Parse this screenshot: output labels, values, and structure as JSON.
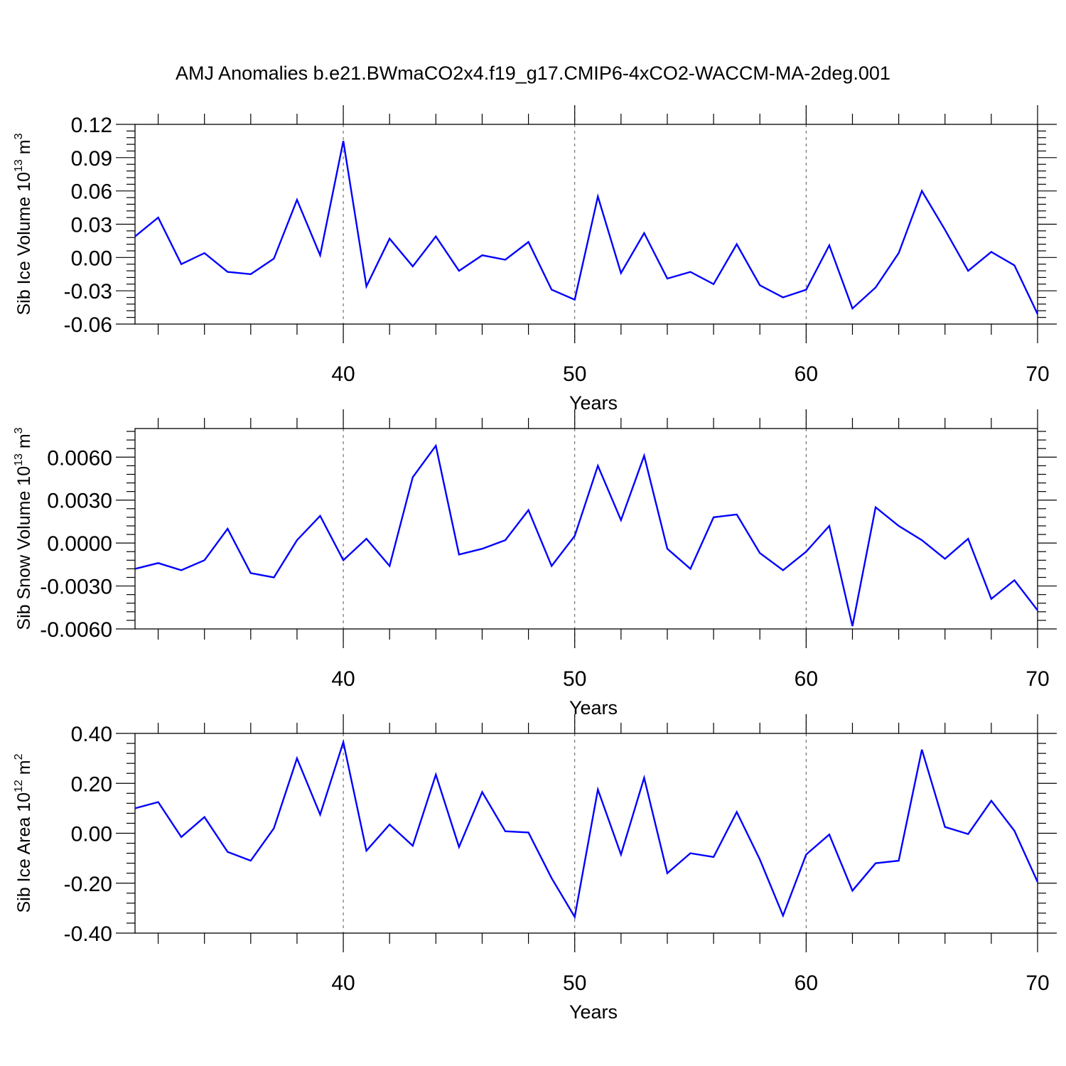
{
  "title": "AMJ Anomalies b.e21.BWmaCO2x4.f19_g17.CMIP6-4xCO2-WACCM-MA-2deg.001",
  "colors": {
    "line": "#0000ff",
    "axes": "#000000",
    "grid": "#555555",
    "background": "#ffffff"
  },
  "chart_data": [
    {
      "type": "line",
      "xlabel": "Years",
      "ylabel_parts": [
        "Sib Ice Volume 10",
        "13",
        " m",
        "3"
      ],
      "xlim": [
        31,
        70
      ],
      "ylim": [
        -0.06,
        0.12
      ],
      "xticks": [
        40,
        50,
        60,
        70
      ],
      "xtick_labels": [
        "40",
        "50",
        "60",
        "70"
      ],
      "yticks": [
        -0.06,
        -0.03,
        0,
        0.03,
        0.06,
        0.09,
        0.12
      ],
      "ytick_labels": [
        "-0.06",
        "-0.03",
        "0.00",
        "0.03",
        "0.06",
        "0.09",
        "0.12"
      ],
      "grid": "vertical dashed at x = 40, 50, 60",
      "x": [
        31,
        32,
        33,
        34,
        35,
        36,
        37,
        38,
        39,
        40,
        41,
        42,
        43,
        44,
        45,
        46,
        47,
        48,
        49,
        50,
        51,
        52,
        53,
        54,
        55,
        56,
        57,
        58,
        59,
        60,
        61,
        62,
        63,
        64,
        65,
        66,
        67,
        68,
        69,
        70
      ],
      "values": [
        0.019,
        0.036,
        -0.006,
        0.004,
        -0.013,
        -0.015,
        -0.001,
        0.052,
        0.002,
        0.105,
        -0.026,
        0.017,
        -0.008,
        0.019,
        -0.012,
        0.002,
        -0.002,
        0.014,
        -0.029,
        -0.038,
        0.055,
        -0.014,
        0.022,
        -0.019,
        -0.013,
        -0.024,
        0.012,
        -0.025,
        -0.036,
        -0.029,
        0.011,
        -0.046,
        -0.027,
        0.004,
        0.06,
        0.025,
        -0.012,
        0.005,
        -0.007,
        -0.051
      ]
    },
    {
      "type": "line",
      "xlabel": "Years",
      "ylabel_parts": [
        "Sib Snow Volume 10",
        "13",
        " m",
        "3"
      ],
      "xlim": [
        31,
        70
      ],
      "ylim": [
        -0.006,
        0.008
      ],
      "xticks": [
        40,
        50,
        60,
        70
      ],
      "xtick_labels": [
        "40",
        "50",
        "60",
        "70"
      ],
      "yticks": [
        -0.006,
        -0.003,
        0,
        0.003,
        0.006
      ],
      "ytick_labels": [
        "-0.0060",
        "-0.0030",
        "0.0000",
        "0.0030",
        "0.0060"
      ],
      "grid": "vertical dashed at x = 40, 50, 60",
      "x": [
        31,
        32,
        33,
        34,
        35,
        36,
        37,
        38,
        39,
        40,
        41,
        42,
        43,
        44,
        45,
        46,
        47,
        48,
        49,
        50,
        51,
        52,
        53,
        54,
        55,
        56,
        57,
        58,
        59,
        60,
        61,
        62,
        63,
        64,
        65,
        66,
        67,
        68,
        69,
        70
      ],
      "values": [
        -0.0018,
        -0.0014,
        -0.0019,
        -0.0012,
        0.001,
        -0.0021,
        -0.0024,
        0.0002,
        0.0019,
        -0.0012,
        0.0003,
        -0.0016,
        0.0046,
        0.0068,
        -0.0008,
        -0.0004,
        0.0002,
        0.0023,
        -0.0016,
        0.0005,
        0.0054,
        0.0016,
        0.0061,
        -0.0004,
        -0.0018,
        0.0018,
        0.002,
        -0.0007,
        -0.0019,
        -0.0006,
        0.0012,
        -0.0058,
        0.0025,
        0.0012,
        0.0002,
        -0.0011,
        0.0003,
        -0.0039,
        -0.0026,
        -0.0047
      ]
    },
    {
      "type": "line",
      "xlabel": "Years",
      "ylabel_parts": [
        "Sib Ice Area 10",
        "12",
        " m",
        "2"
      ],
      "xlim": [
        31,
        70
      ],
      "ylim": [
        -0.4,
        0.4
      ],
      "xticks": [
        40,
        50,
        60,
        70
      ],
      "xtick_labels": [
        "40",
        "50",
        "60",
        "70"
      ],
      "yticks": [
        -0.4,
        -0.2,
        0,
        0.2,
        0.4
      ],
      "ytick_labels": [
        "-0.40",
        "-0.20",
        "0.00",
        "0.20",
        "0.40"
      ],
      "grid": "vertical dashed at x = 40, 50, 60",
      "x": [
        31,
        32,
        33,
        34,
        35,
        36,
        37,
        38,
        39,
        40,
        41,
        42,
        43,
        44,
        45,
        46,
        47,
        48,
        49,
        50,
        51,
        52,
        53,
        54,
        55,
        56,
        57,
        58,
        59,
        60,
        61,
        62,
        63,
        64,
        65,
        66,
        67,
        68,
        69,
        70
      ],
      "values": [
        0.1,
        0.125,
        -0.015,
        0.065,
        -0.075,
        -0.11,
        0.02,
        0.3,
        0.075,
        0.365,
        -0.07,
        0.035,
        -0.05,
        0.235,
        -0.055,
        0.165,
        0.008,
        0.003,
        -0.18,
        -0.335,
        0.175,
        -0.085,
        0.222,
        -0.16,
        -0.08,
        -0.095,
        0.085,
        -0.105,
        -0.33,
        -0.085,
        -0.005,
        -0.23,
        -0.12,
        -0.11,
        0.335,
        0.025,
        -0.003,
        0.13,
        0.01,
        -0.195
      ]
    }
  ]
}
